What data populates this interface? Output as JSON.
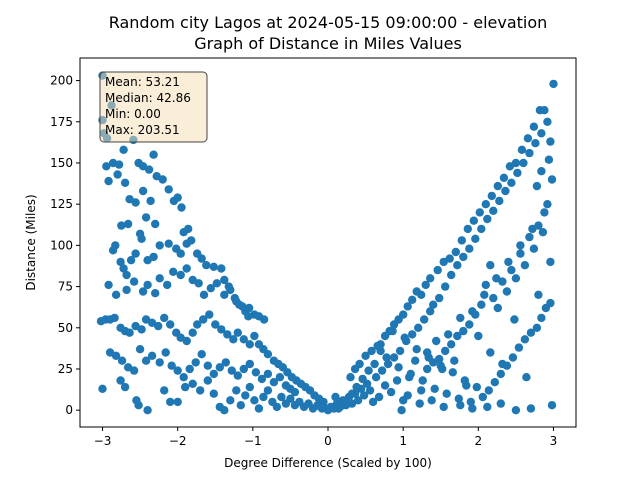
{
  "chart_data": {
    "type": "scatter",
    "title_line1": "Random city Lagos at 2024-05-15 09:00:00  - elevation",
    "title_line2": "Graph of Distance in Miles Values",
    "xlabel": "Degree Difference (Scaled by 100)",
    "ylabel": "Distance (Miles)",
    "xlim": [
      -3.3,
      3.3
    ],
    "ylim": [
      -10.2,
      213.7
    ],
    "xticks": [
      -3,
      -2,
      -1,
      0,
      1,
      2,
      3
    ],
    "xtick_labels": [
      "−3",
      "−2",
      "−1",
      "0",
      "1",
      "2",
      "3"
    ],
    "yticks": [
      0,
      25,
      50,
      75,
      100,
      125,
      150,
      175,
      200
    ],
    "ytick_labels": [
      "0",
      "25",
      "50",
      "75",
      "100",
      "125",
      "150",
      "175",
      "200"
    ],
    "grid": false,
    "color": "#1f77b4",
    "stats_box": {
      "mean": "Mean: 53.21",
      "median": "Median: 42.86",
      "min": "Min: 0.00",
      "max": "Max: 203.51",
      "facecolor": "#f5deb3",
      "placement": "top-left"
    },
    "points": [
      [
        -3.0,
        203
      ],
      [
        -3.0,
        176
      ],
      [
        -2.98,
        168
      ],
      [
        -2.94,
        165
      ],
      [
        -2.88,
        185
      ],
      [
        -2.95,
        148
      ],
      [
        -2.86,
        150
      ],
      [
        -2.92,
        139
      ],
      [
        -2.78,
        149
      ],
      [
        -2.72,
        158
      ],
      [
        -2.8,
        143
      ],
      [
        -2.7,
        138
      ],
      [
        -2.59,
        164
      ],
      [
        -2.52,
        150
      ],
      [
        -2.46,
        148
      ],
      [
        -2.38,
        146
      ],
      [
        -2.32,
        155
      ],
      [
        -2.28,
        142
      ],
      [
        -2.2,
        140
      ],
      [
        -2.12,
        134
      ],
      [
        -2.05,
        127
      ],
      [
        -2.0,
        129
      ],
      [
        -1.95,
        123
      ],
      [
        -1.86,
        110
      ],
      [
        -1.92,
        108
      ],
      [
        -2.46,
        133
      ],
      [
        -2.36,
        127
      ],
      [
        -2.42,
        117
      ],
      [
        -2.3,
        113
      ],
      [
        -2.56,
        126
      ],
      [
        -2.64,
        128
      ],
      [
        -2.5,
        107
      ],
      [
        -2.75,
        112
      ],
      [
        -2.66,
        113
      ],
      [
        -2.83,
        100
      ],
      [
        -2.86,
        97
      ],
      [
        -2.76,
        90
      ],
      [
        -2.72,
        86
      ],
      [
        -2.68,
        82
      ],
      [
        -2.62,
        91
      ],
      [
        -2.56,
        95
      ],
      [
        -2.48,
        104
      ],
      [
        -2.4,
        91
      ],
      [
        -2.32,
        93
      ],
      [
        -2.24,
        100
      ],
      [
        -2.12,
        101
      ],
      [
        -2.02,
        98
      ],
      [
        -1.96,
        95
      ],
      [
        -1.88,
        101
      ],
      [
        -1.82,
        103
      ],
      [
        -1.74,
        95
      ],
      [
        -1.68,
        92
      ],
      [
        -1.62,
        88
      ],
      [
        -1.52,
        87
      ],
      [
        -1.42,
        86
      ],
      [
        -1.38,
        79
      ],
      [
        -1.32,
        75
      ],
      [
        -1.24,
        68
      ],
      [
        -1.18,
        64
      ],
      [
        -1.1,
        60
      ],
      [
        -1.05,
        62
      ],
      [
        -0.98,
        58
      ],
      [
        -0.92,
        57
      ],
      [
        -0.85,
        55
      ],
      [
        -2.92,
        76
      ],
      [
        -2.82,
        70
      ],
      [
        -2.68,
        73
      ],
      [
        -2.58,
        78
      ],
      [
        -2.46,
        72
      ],
      [
        -2.4,
        76
      ],
      [
        -2.3,
        71
      ],
      [
        -2.24,
        80
      ],
      [
        -2.14,
        76
      ],
      [
        -2.06,
        84
      ],
      [
        -1.96,
        82
      ],
      [
        -1.88,
        86
      ],
      [
        -1.8,
        79
      ],
      [
        -1.72,
        77
      ],
      [
        -1.65,
        70
      ],
      [
        -1.56,
        74
      ],
      [
        -1.48,
        77
      ],
      [
        -1.38,
        70
      ],
      [
        -1.3,
        73
      ],
      [
        -1.22,
        66
      ],
      [
        -1.14,
        63
      ],
      [
        -1.06,
        57
      ],
      [
        -3.02,
        54
      ],
      [
        -2.96,
        55
      ],
      [
        -2.9,
        55
      ],
      [
        -2.84,
        56
      ],
      [
        -2.76,
        50
      ],
      [
        -2.7,
        48
      ],
      [
        -2.64,
        47
      ],
      [
        -2.56,
        51
      ],
      [
        -2.48,
        49
      ],
      [
        -2.42,
        55
      ],
      [
        -2.34,
        53
      ],
      [
        -2.26,
        51
      ],
      [
        -2.18,
        56
      ],
      [
        -2.1,
        52
      ],
      [
        -2.02,
        47
      ],
      [
        -1.96,
        44
      ],
      [
        -1.88,
        42
      ],
      [
        -1.8,
        47
      ],
      [
        -1.74,
        52
      ],
      [
        -1.66,
        55
      ],
      [
        -1.58,
        58
      ],
      [
        -1.5,
        52
      ],
      [
        -1.42,
        49
      ],
      [
        -1.34,
        46
      ],
      [
        -1.26,
        43
      ],
      [
        -1.2,
        47
      ],
      [
        -1.12,
        43
      ],
      [
        -1.04,
        40
      ],
      [
        -0.98,
        45
      ],
      [
        -0.92,
        40
      ],
      [
        -0.86,
        37
      ],
      [
        -0.8,
        34
      ],
      [
        -0.72,
        30
      ],
      [
        -0.66,
        28
      ],
      [
        -0.6,
        26
      ],
      [
        -0.54,
        23
      ],
      [
        -0.48,
        20
      ],
      [
        -0.42,
        18
      ],
      [
        -0.36,
        16
      ],
      [
        -0.3,
        14
      ],
      [
        -0.24,
        12
      ],
      [
        -0.18,
        9
      ],
      [
        -0.12,
        7
      ],
      [
        -0.06,
        5
      ],
      [
        -2.9,
        35
      ],
      [
        -2.82,
        33
      ],
      [
        -2.74,
        30
      ],
      [
        -2.66,
        26
      ],
      [
        -2.58,
        24
      ],
      [
        -2.5,
        37
      ],
      [
        -2.42,
        30
      ],
      [
        -2.34,
        33
      ],
      [
        -2.24,
        29
      ],
      [
        -2.16,
        35
      ],
      [
        -2.08,
        27
      ],
      [
        -2.0,
        24
      ],
      [
        -1.92,
        20
      ],
      [
        -1.84,
        25
      ],
      [
        -1.76,
        29
      ],
      [
        -1.68,
        34
      ],
      [
        -1.6,
        27
      ],
      [
        -1.52,
        22
      ],
      [
        -1.44,
        26
      ],
      [
        -1.36,
        29
      ],
      [
        -1.28,
        24
      ],
      [
        -1.2,
        21
      ],
      [
        -1.12,
        25
      ],
      [
        -1.04,
        28
      ],
      [
        -0.96,
        23
      ],
      [
        -0.88,
        19
      ],
      [
        -0.8,
        22
      ],
      [
        -0.72,
        17
      ],
      [
        -0.64,
        20
      ],
      [
        -0.56,
        15
      ],
      [
        -0.5,
        13
      ],
      [
        -0.44,
        11
      ],
      [
        -3.0,
        13
      ],
      [
        -2.76,
        18
      ],
      [
        -2.7,
        14
      ],
      [
        -2.55,
        6
      ],
      [
        -2.52,
        3
      ],
      [
        -2.4,
        0
      ],
      [
        -2.18,
        12
      ],
      [
        -2.1,
        5
      ],
      [
        -2.0,
        5
      ],
      [
        -1.9,
        14
      ],
      [
        -1.8,
        16
      ],
      [
        -1.7,
        12
      ],
      [
        -1.6,
        18
      ],
      [
        -1.52,
        10
      ],
      [
        -1.44,
        2
      ],
      [
        -1.38,
        0
      ],
      [
        -1.3,
        6
      ],
      [
        -1.22,
        12
      ],
      [
        -1.16,
        3
      ],
      [
        -1.1,
        9
      ],
      [
        -1.04,
        14
      ],
      [
        -0.98,
        6
      ],
      [
        -0.92,
        1
      ],
      [
        -0.86,
        8
      ],
      [
        -0.8,
        12
      ],
      [
        -0.74,
        5
      ],
      [
        -0.68,
        2
      ],
      [
        -0.62,
        8
      ],
      [
        -0.56,
        4
      ],
      [
        -0.5,
        7
      ],
      [
        -0.44,
        3
      ],
      [
        -0.38,
        5
      ],
      [
        -0.32,
        2
      ],
      [
        -0.26,
        4
      ],
      [
        -0.2,
        1
      ],
      [
        -0.14,
        3
      ],
      [
        -0.08,
        1
      ],
      [
        0.0,
        0
      ],
      [
        0.04,
        2
      ],
      [
        0.08,
        1
      ],
      [
        0.12,
        4
      ],
      [
        0.16,
        2
      ],
      [
        0.2,
        6
      ],
      [
        0.24,
        3
      ],
      [
        0.28,
        8
      ],
      [
        0.32,
        4
      ],
      [
        0.36,
        10
      ],
      [
        0.4,
        6
      ],
      [
        0.44,
        13
      ],
      [
        0.48,
        9
      ],
      [
        0.52,
        16
      ],
      [
        0.56,
        12
      ],
      [
        0.6,
        5
      ],
      [
        0.64,
        20
      ],
      [
        0.68,
        8
      ],
      [
        0.72,
        24
      ],
      [
        0.76,
        15
      ],
      [
        0.8,
        28
      ],
      [
        0.84,
        11
      ],
      [
        0.88,
        32
      ],
      [
        0.92,
        18
      ],
      [
        0.96,
        36
      ],
      [
        1.0,
        6
      ],
      [
        1.04,
        42
      ],
      [
        1.08,
        20
      ],
      [
        1.12,
        46
      ],
      [
        1.16,
        30
      ],
      [
        1.2,
        50
      ],
      [
        1.24,
        12
      ],
      [
        1.28,
        55
      ],
      [
        1.32,
        35
      ],
      [
        1.36,
        60
      ],
      [
        0.7,
        40
      ],
      [
        0.76,
        45
      ],
      [
        0.82,
        48
      ],
      [
        0.88,
        52
      ],
      [
        0.94,
        55
      ],
      [
        1.0,
        58
      ],
      [
        1.06,
        63
      ],
      [
        1.12,
        67
      ],
      [
        1.18,
        72
      ],
      [
        1.24,
        70
      ],
      [
        1.3,
        76
      ],
      [
        1.36,
        80
      ],
      [
        0.3,
        20
      ],
      [
        0.36,
        25
      ],
      [
        0.42,
        28
      ],
      [
        0.5,
        33
      ],
      [
        0.58,
        36
      ],
      [
        0.66,
        39
      ],
      [
        1.4,
        64
      ],
      [
        1.44,
        42
      ],
      [
        1.48,
        68
      ],
      [
        1.52,
        25
      ],
      [
        1.56,
        75
      ],
      [
        1.6,
        46
      ],
      [
        1.64,
        82
      ],
      [
        1.68,
        30
      ],
      [
        1.72,
        88
      ],
      [
        1.76,
        56
      ],
      [
        1.8,
        93
      ],
      [
        1.84,
        15
      ],
      [
        1.88,
        98
      ],
      [
        1.92,
        60
      ],
      [
        1.96,
        104
      ],
      [
        2.0,
        45
      ],
      [
        2.04,
        110
      ],
      [
        2.08,
        70
      ],
      [
        2.12,
        116
      ],
      [
        2.16,
        35
      ],
      [
        2.2,
        121
      ],
      [
        2.24,
        80
      ],
      [
        2.28,
        127
      ],
      [
        2.32,
        28
      ],
      [
        2.36,
        133
      ],
      [
        2.4,
        90
      ],
      [
        2.44,
        138
      ],
      [
        2.48,
        55
      ],
      [
        2.52,
        144
      ],
      [
        2.56,
        100
      ],
      [
        2.6,
        150
      ],
      [
        2.64,
        20
      ],
      [
        2.68,
        156
      ],
      [
        2.72,
        110
      ],
      [
        2.76,
        162
      ],
      [
        2.8,
        70
      ],
      [
        2.84,
        168
      ],
      [
        2.88,
        120
      ],
      [
        2.92,
        175
      ],
      [
        2.96,
        90
      ],
      [
        3.0,
        198
      ],
      [
        2.88,
        182
      ],
      [
        2.82,
        182
      ],
      [
        2.74,
        172
      ],
      [
        2.66,
        165
      ],
      [
        2.58,
        158
      ],
      [
        2.5,
        150
      ],
      [
        2.42,
        148
      ],
      [
        2.34,
        141
      ],
      [
        2.26,
        136
      ],
      [
        2.18,
        130
      ],
      [
        2.1,
        125
      ],
      [
        2.02,
        120
      ],
      [
        1.94,
        115
      ],
      [
        1.86,
        110
      ],
      [
        1.78,
        103
      ],
      [
        1.7,
        96
      ],
      [
        1.62,
        92
      ],
      [
        1.54,
        90
      ],
      [
        1.46,
        85
      ],
      [
        2.96,
        65
      ],
      [
        2.9,
        62
      ],
      [
        2.84,
        56
      ],
      [
        2.78,
        50
      ],
      [
        2.7,
        47
      ],
      [
        2.62,
        43
      ],
      [
        2.54,
        38
      ],
      [
        2.46,
        32
      ],
      [
        2.38,
        27
      ],
      [
        2.3,
        22
      ],
      [
        2.22,
        17
      ],
      [
        2.14,
        12
      ],
      [
        2.06,
        8
      ],
      [
        1.98,
        14
      ],
      [
        1.9,
        5
      ],
      [
        1.82,
        18
      ],
      [
        1.74,
        7
      ],
      [
        1.66,
        23
      ],
      [
        1.58,
        10
      ],
      [
        1.5,
        27
      ],
      [
        1.42,
        13
      ],
      [
        1.34,
        32
      ],
      [
        1.26,
        18
      ],
      [
        1.18,
        37
      ],
      [
        1.1,
        22
      ],
      [
        1.02,
        44
      ],
      [
        0.94,
        26
      ],
      [
        0.86,
        48
      ],
      [
        0.78,
        32
      ],
      [
        0.7,
        36
      ],
      [
        0.62,
        28
      ],
      [
        0.54,
        24
      ],
      [
        0.46,
        19
      ],
      [
        0.38,
        14
      ],
      [
        0.32,
        10
      ],
      [
        0.26,
        6
      ],
      [
        0.2,
        3
      ],
      [
        0.14,
        1
      ],
      [
        -0.02,
        1
      ],
      [
        -0.1,
        2
      ],
      [
        0.1,
        8
      ],
      [
        0.18,
        5
      ],
      [
        2.2,
        68
      ],
      [
        2.26,
        62
      ],
      [
        2.32,
        78
      ],
      [
        2.38,
        72
      ],
      [
        2.44,
        85
      ],
      [
        2.5,
        80
      ],
      [
        2.56,
        95
      ],
      [
        2.62,
        88
      ],
      [
        2.68,
        105
      ],
      [
        2.74,
        98
      ],
      [
        2.8,
        112
      ],
      [
        2.86,
        108
      ],
      [
        2.92,
        125
      ],
      [
        2.98,
        140
      ],
      [
        2.94,
        152
      ],
      [
        2.96,
        163
      ],
      [
        2.84,
        145
      ],
      [
        2.78,
        136
      ],
      [
        2.16,
        88
      ],
      [
        2.1,
        76
      ],
      [
        2.04,
        64
      ],
      [
        1.96,
        58
      ],
      [
        1.88,
        52
      ],
      [
        1.8,
        48
      ],
      [
        1.72,
        45
      ],
      [
        1.64,
        40
      ],
      [
        1.56,
        36
      ],
      [
        1.48,
        31
      ],
      [
        1.4,
        29
      ],
      [
        1.32,
        25
      ],
      [
        2.98,
        3
      ],
      [
        2.7,
        1
      ],
      [
        2.5,
        0
      ],
      [
        2.3,
        4
      ],
      [
        2.12,
        2
      ],
      [
        1.92,
        1
      ],
      [
        1.76,
        3
      ],
      [
        1.54,
        2
      ],
      [
        1.38,
        6
      ],
      [
        1.22,
        4
      ],
      [
        1.06,
        9
      ],
      [
        0.98,
        0
      ]
    ]
  }
}
